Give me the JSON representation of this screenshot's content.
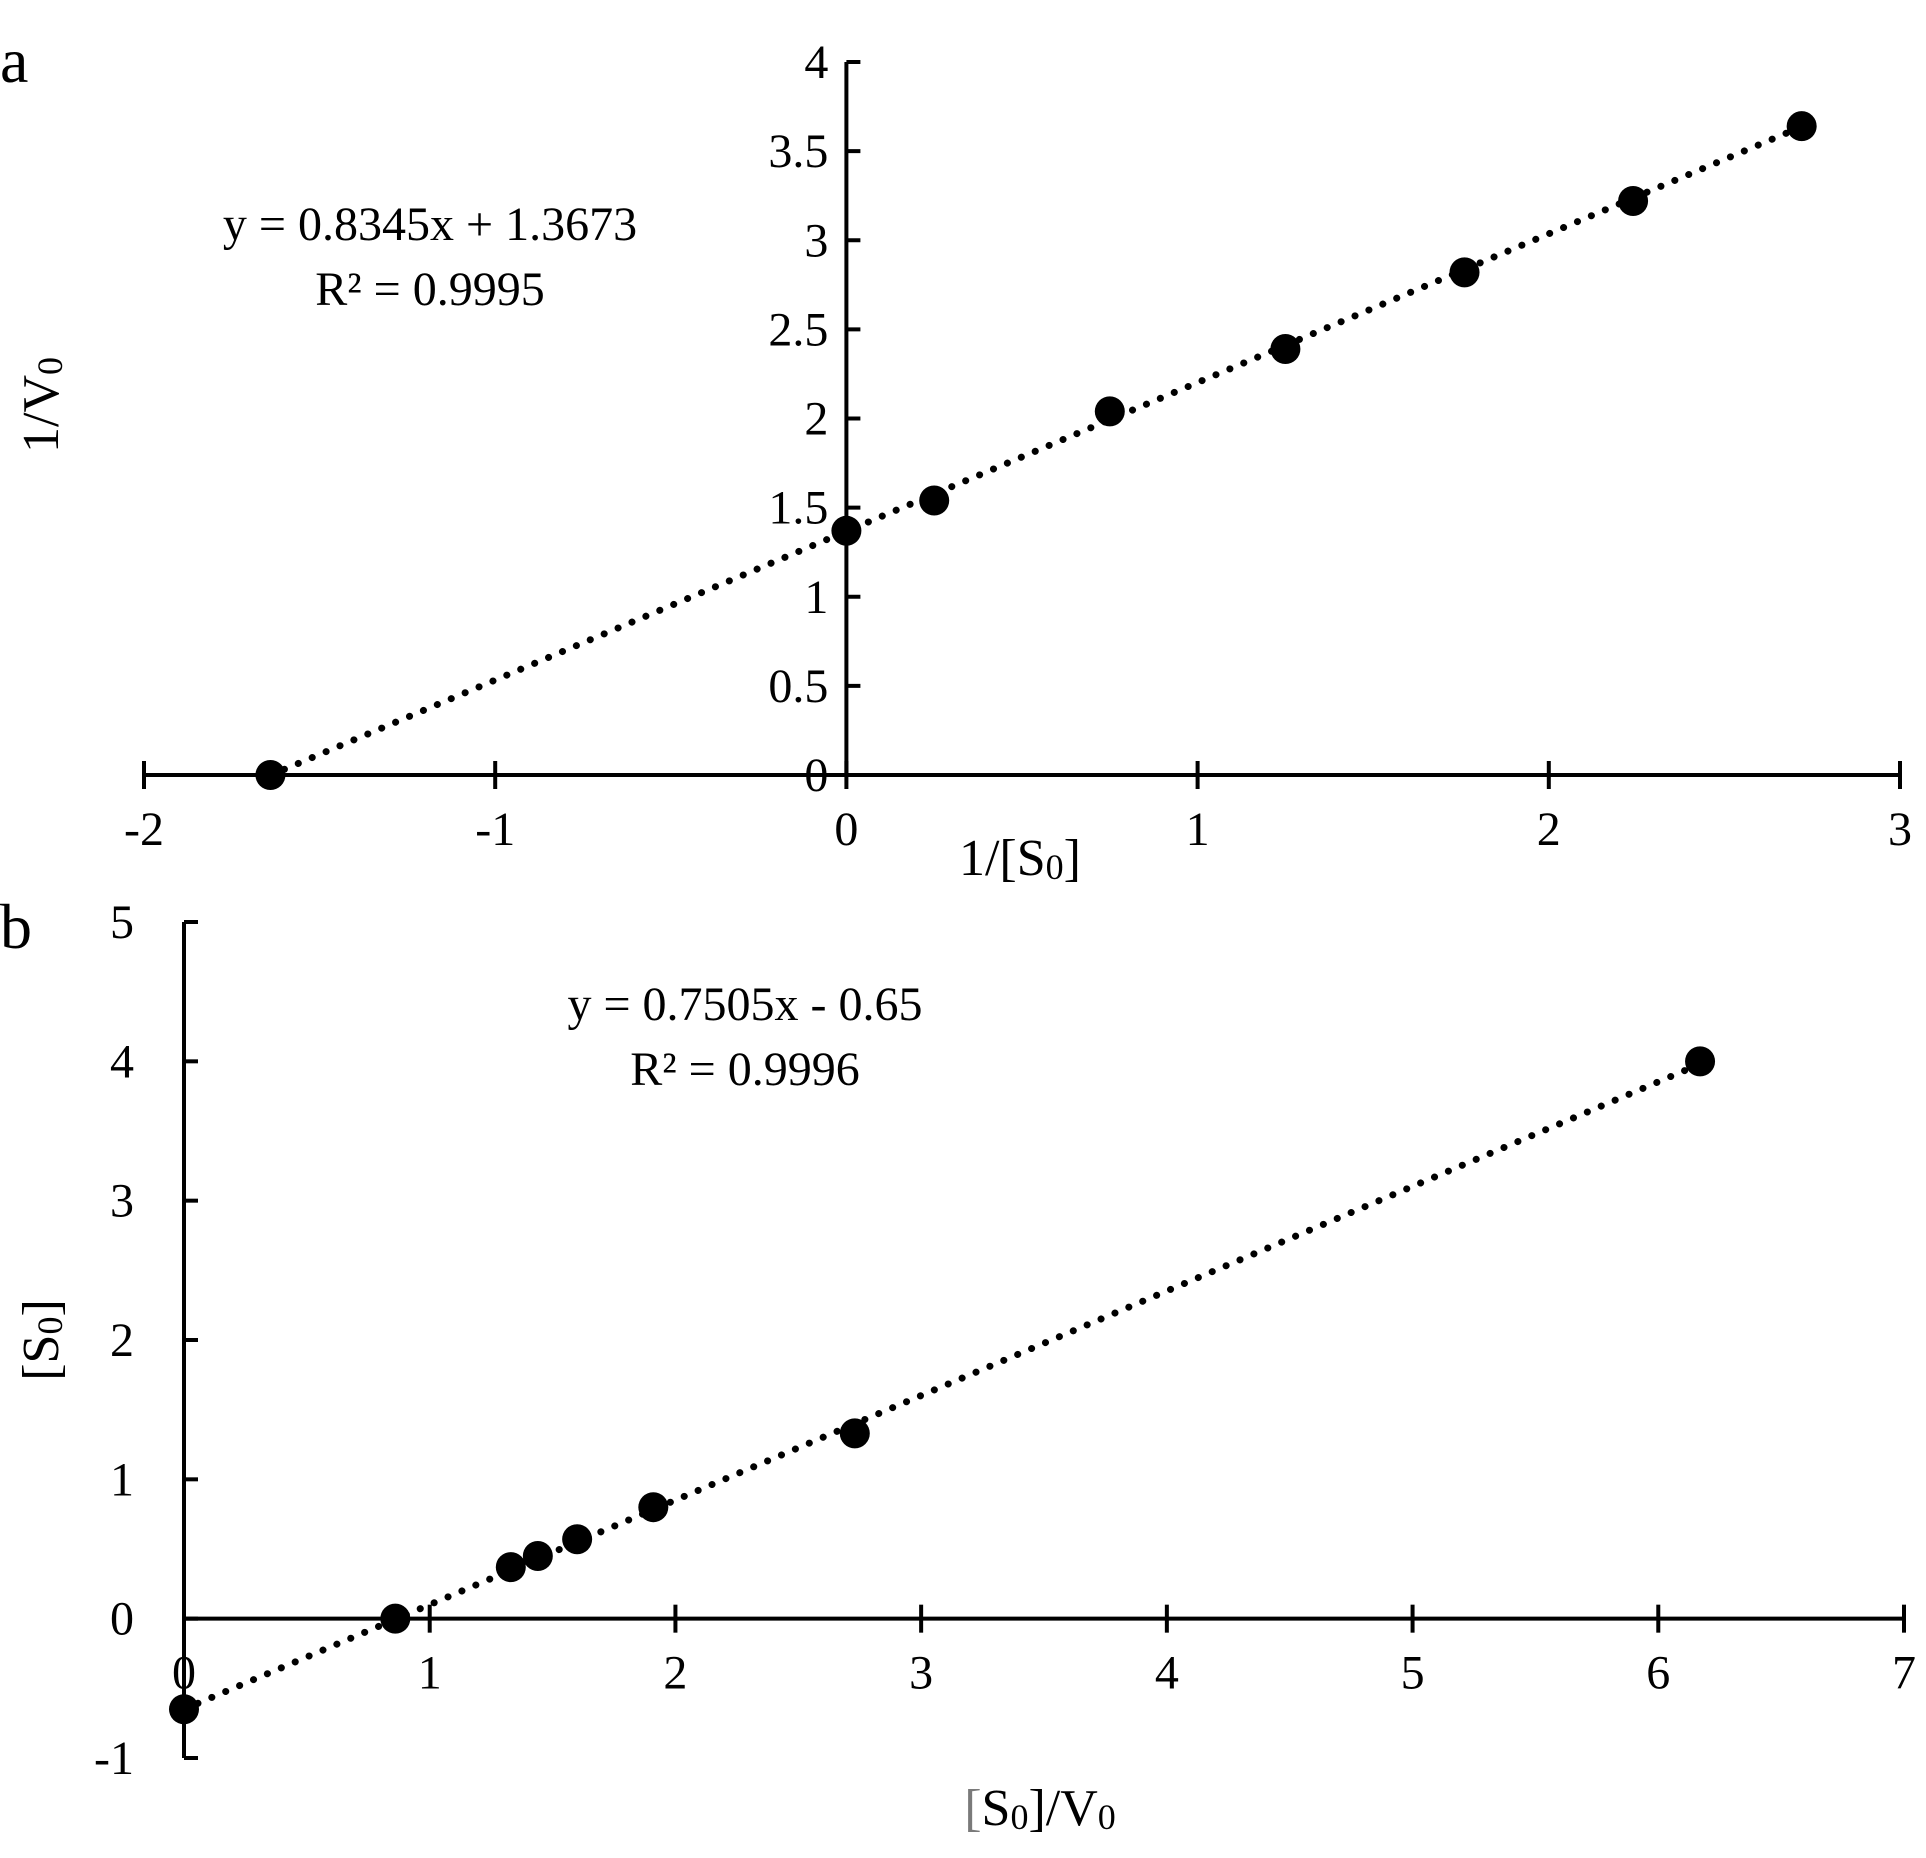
{
  "chart_data": [
    {
      "panel": "a",
      "type": "scatter",
      "xlabel": "1/[S0]",
      "ylabel": "1/V0",
      "xlim": [
        -2,
        3
      ],
      "ylim": [
        0,
        4
      ],
      "x_ticks": [
        -2,
        -1,
        0,
        1,
        2,
        3
      ],
      "y_ticks": [
        0,
        0.5,
        1,
        1.5,
        2,
        2.5,
        3,
        3.5,
        4
      ],
      "x_tick_labels": [
        "-2",
        "-1",
        "0",
        "1",
        "2",
        "3"
      ],
      "y_tick_labels": [
        "0",
        "0.5",
        "1",
        "1.5",
        "2",
        "2.5",
        "3",
        "3.5",
        "4"
      ],
      "grid": false,
      "points": [
        {
          "x": -1.64,
          "y": 0
        },
        {
          "x": 0,
          "y": 1.37
        },
        {
          "x": 0.25,
          "y": 1.54
        },
        {
          "x": 0.75,
          "y": 2.04
        },
        {
          "x": 1.25,
          "y": 2.39
        },
        {
          "x": 1.76,
          "y": 2.82
        },
        {
          "x": 2.24,
          "y": 3.22
        },
        {
          "x": 2.72,
          "y": 3.64
        }
      ],
      "trendline": {
        "slope": 0.8345,
        "intercept": 1.3673,
        "x_from": -1.64,
        "x_to": 2.72,
        "style": "dotted"
      },
      "equation": "y = 0.8345x + 1.3673",
      "r2": "R² = 0.9995"
    },
    {
      "panel": "b",
      "type": "scatter",
      "xlabel": "[S0]/V0",
      "ylabel": "[S0]",
      "xlim": [
        0,
        7
      ],
      "ylim": [
        -1,
        5
      ],
      "x_ticks": [
        0,
        1,
        2,
        3,
        4,
        5,
        6,
        7
      ],
      "y_ticks": [
        -1,
        0,
        1,
        2,
        3,
        4,
        5
      ],
      "x_tick_labels": [
        "0",
        "1",
        "2",
        "3",
        "4",
        "5",
        "6",
        "7"
      ],
      "y_tick_labels": [
        "-1",
        "0",
        "1",
        "2",
        "3",
        "4",
        "5"
      ],
      "grid": false,
      "points": [
        {
          "x": 0,
          "y": -0.65
        },
        {
          "x": 0.86,
          "y": 0
        },
        {
          "x": 1.33,
          "y": 0.37
        },
        {
          "x": 1.44,
          "y": 0.45
        },
        {
          "x": 1.6,
          "y": 0.57
        },
        {
          "x": 1.91,
          "y": 0.8
        },
        {
          "x": 2.73,
          "y": 1.33
        },
        {
          "x": 6.17,
          "y": 4
        }
      ],
      "trendline": {
        "slope": 0.7505,
        "intercept": -0.65,
        "x_from": 0,
        "x_to": 6.17,
        "style": "dotted"
      },
      "equation": "y = 0.7505x - 0.65",
      "r2": "R² = 0.9996"
    }
  ]
}
